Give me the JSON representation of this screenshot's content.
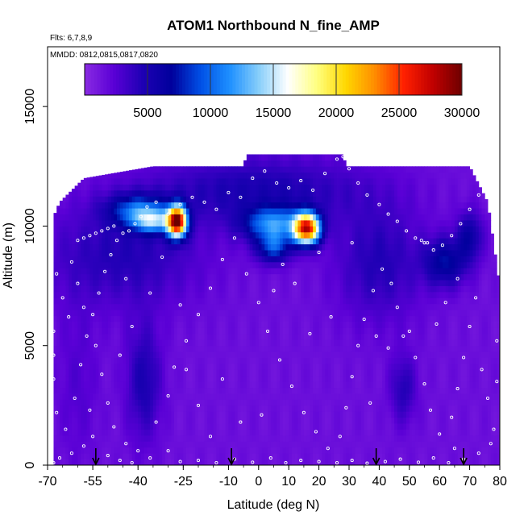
{
  "chart_data": {
    "type": "heatmap",
    "title": "ATOM1 Northbound N_fine_AMP",
    "subtitle_flights": "Flts: 6,7,8,9",
    "subtitle_dates": "MMDD: 0812,0815,0817,0820",
    "xlabel": "Latitude (deg N)",
    "ylabel": "Altitude (m)",
    "xlim": [
      -70,
      80
    ],
    "ylim": [
      0,
      17500
    ],
    "x_ticks": [
      -70,
      -55,
      -40,
      -25,
      -10,
      0,
      10,
      20,
      30,
      40,
      50,
      60,
      70,
      80
    ],
    "x_tick_labels": [
      "-70",
      "-55",
      "-40",
      "-25",
      "-10",
      "0",
      "10",
      "20",
      "30",
      "40",
      "50",
      "60",
      "70",
      "80"
    ],
    "y_ticks": [
      0,
      5000,
      10000,
      15000
    ],
    "y_tick_labels": [
      "0",
      "5000",
      "10000",
      "15000"
    ],
    "colorbar": {
      "range": [
        0,
        30000
      ],
      "ticks": [
        5000,
        10000,
        15000,
        20000,
        25000,
        30000
      ],
      "tick_labels": [
        "5000",
        "10000",
        "15000",
        "20000",
        "25000",
        "30000"
      ],
      "colors": [
        "#8a2be2",
        "#5a00d6",
        "#1e00b4",
        "#00009c",
        "#0050e6",
        "#1e90ff",
        "#87cefa",
        "#ffffff",
        "#ffff80",
        "#ffd700",
        "#ff8c00",
        "#ff2000",
        "#c00000",
        "#6e0000"
      ]
    },
    "field": {
      "background_value": 1500,
      "top_altitude_by_latitude": [
        {
          "lat": -68,
          "top": 10400
        },
        {
          "lat": -66,
          "top": 11000
        },
        {
          "lat": -62,
          "top": 11500
        },
        {
          "lat": -58,
          "top": 12000
        },
        {
          "lat": -35,
          "top": 12500
        },
        {
          "lat": -5,
          "top": 12500
        },
        {
          "lat": -4,
          "top": 13000
        },
        {
          "lat": 28,
          "top": 13000
        },
        {
          "lat": 29,
          "top": 12500
        },
        {
          "lat": 70,
          "top": 12500
        },
        {
          "lat": 72,
          "top": 12000
        },
        {
          "lat": 76,
          "top": 11000
        },
        {
          "lat": 80,
          "top": 7500
        }
      ],
      "features": [
        {
          "lat": -40,
          "alt": 10700,
          "sigma_lat": 7,
          "sigma_alt": 450,
          "value": 7000
        },
        {
          "lat": -27,
          "alt": 10200,
          "sigma_lat": 2.2,
          "sigma_alt": 450,
          "value": 26000
        },
        {
          "lat": -35,
          "alt": 10200,
          "sigma_lat": 5,
          "sigma_alt": 350,
          "value": 9000
        },
        {
          "lat": 5,
          "alt": 10100,
          "sigma_lat": 7,
          "sigma_alt": 500,
          "value": 9000
        },
        {
          "lat": 16,
          "alt": 9900,
          "sigma_lat": 3,
          "sigma_alt": 450,
          "value": 24000
        },
        {
          "lat": 5,
          "alt": 9100,
          "sigma_lat": 4,
          "sigma_alt": 450,
          "value": 7000
        },
        {
          "lat": 0,
          "alt": 11500,
          "sigma_lat": 25,
          "sigma_alt": 1000,
          "value": 3500
        },
        {
          "lat": -45,
          "alt": 8800,
          "sigma_lat": 18,
          "sigma_alt": 1500,
          "value": 3000
        },
        {
          "lat": 40,
          "alt": 8500,
          "sigma_lat": 10,
          "sigma_alt": 1700,
          "value": 3000
        },
        {
          "lat": 62,
          "alt": 8500,
          "sigma_lat": 5,
          "sigma_alt": 700,
          "value": 5500
        },
        {
          "lat": 70,
          "alt": 9600,
          "sigma_lat": 3,
          "sigma_alt": 700,
          "value": 4500
        },
        {
          "lat": -38,
          "alt": 3500,
          "sigma_lat": 4,
          "sigma_alt": 1700,
          "value": 3500
        },
        {
          "lat": 48,
          "alt": 3200,
          "sigma_lat": 3,
          "sigma_alt": 1000,
          "value": 3000
        },
        {
          "lat": -60,
          "alt": 3500,
          "sigma_lat": 5,
          "sigma_alt": 2500,
          "value": 1200
        }
      ]
    },
    "flight_track_points": [
      [
        -68,
        100
      ],
      [
        -66,
        300
      ],
      [
        -62,
        500
      ],
      [
        -58,
        800
      ],
      [
        -55,
        1200
      ],
      [
        -50,
        400
      ],
      [
        -46,
        200
      ],
      [
        -42,
        100
      ],
      [
        -36,
        300
      ],
      [
        -30,
        600
      ],
      [
        -26,
        150
      ],
      [
        -20,
        200
      ],
      [
        -14,
        100
      ],
      [
        -8,
        250
      ],
      [
        -2,
        120
      ],
      [
        4,
        300
      ],
      [
        9,
        100
      ],
      [
        14,
        200
      ],
      [
        20,
        150
      ],
      [
        26,
        100
      ],
      [
        31,
        200
      ],
      [
        36,
        80
      ],
      [
        42,
        150
      ],
      [
        47,
        250
      ],
      [
        53,
        120
      ],
      [
        58,
        300
      ],
      [
        63,
        100
      ],
      [
        68,
        250
      ],
      [
        73,
        500
      ],
      [
        77,
        900
      ],
      [
        -68,
        5600
      ],
      [
        -68,
        4600
      ],
      [
        -68,
        3600
      ],
      [
        -67,
        2200
      ],
      [
        -64,
        1500
      ],
      [
        -61,
        2800
      ],
      [
        -59,
        4200
      ],
      [
        -57,
        5400
      ],
      [
        -55,
        6300
      ],
      [
        -53,
        7200
      ],
      [
        -51,
        8100
      ],
      [
        -49,
        8800
      ],
      [
        -47,
        9400
      ],
      [
        -45,
        9700
      ],
      [
        -43,
        9800
      ],
      [
        -41,
        10100
      ],
      [
        -39,
        10400
      ],
      [
        -37,
        10800
      ],
      [
        -34,
        11000
      ],
      [
        -30,
        10500
      ],
      [
        -26,
        10900
      ],
      [
        -22,
        11200
      ],
      [
        -18,
        11000
      ],
      [
        -14,
        10700
      ],
      [
        -10,
        11400
      ],
      [
        -6,
        11200
      ],
      [
        -2,
        12000
      ],
      [
        2,
        12300
      ],
      [
        6,
        11800
      ],
      [
        10,
        11600
      ],
      [
        14,
        11900
      ],
      [
        18,
        11500
      ],
      [
        22,
        12200
      ],
      [
        26,
        12800
      ],
      [
        28,
        12900
      ],
      [
        30,
        12400
      ],
      [
        33,
        11800
      ],
      [
        36,
        11300
      ],
      [
        40,
        10900
      ],
      [
        43,
        10500
      ],
      [
        46,
        10200
      ],
      [
        49,
        9800
      ],
      [
        52,
        9500
      ],
      [
        55,
        9300
      ],
      [
        58,
        9000
      ],
      [
        61,
        9200
      ],
      [
        64,
        9600
      ],
      [
        67,
        10100
      ],
      [
        70,
        10700
      ],
      [
        73,
        11300
      ],
      [
        75,
        12000
      ],
      [
        -60,
        9400
      ],
      [
        -58,
        9500
      ],
      [
        -56,
        9600
      ],
      [
        -54,
        9700
      ],
      [
        -52,
        9800
      ],
      [
        -50,
        9900
      ],
      [
        -48,
        10000
      ],
      [
        54,
        9400
      ],
      [
        56,
        9300
      ],
      [
        -65,
        7000
      ],
      [
        -62,
        8500
      ],
      [
        -60,
        7600
      ],
      [
        -58,
        6600
      ],
      [
        -54,
        5000
      ],
      [
        -52,
        3800
      ],
      [
        -50,
        2600
      ],
      [
        -48,
        1600
      ],
      [
        -44,
        900
      ],
      [
        -40,
        600
      ],
      [
        -34,
        1800
      ],
      [
        -30,
        2900
      ],
      [
        -28,
        4100
      ],
      [
        -24,
        5200
      ],
      [
        -20,
        6300
      ],
      [
        -16,
        7400
      ],
      [
        -12,
        8600
      ],
      [
        -8,
        9500
      ],
      [
        -4,
        8000
      ],
      [
        0,
        6800
      ],
      [
        3,
        5600
      ],
      [
        7,
        4400
      ],
      [
        11,
        3300
      ],
      [
        15,
        2200
      ],
      [
        19,
        1400
      ],
      [
        23,
        700
      ],
      [
        27,
        1200
      ],
      [
        29,
        2400
      ],
      [
        31,
        3700
      ],
      [
        33,
        5000
      ],
      [
        35,
        6100
      ],
      [
        38,
        7300
      ],
      [
        41,
        8200
      ],
      [
        44,
        7600
      ],
      [
        46,
        6600
      ],
      [
        50,
        5600
      ],
      [
        52,
        4500
      ],
      [
        55,
        3400
      ],
      [
        57,
        2300
      ],
      [
        60,
        1300
      ],
      [
        64,
        2000
      ],
      [
        66,
        3200
      ],
      [
        68,
        4500
      ],
      [
        70,
        5800
      ],
      [
        72,
        7000
      ],
      [
        74,
        4000
      ],
      [
        76,
        2800
      ],
      [
        78,
        1500
      ],
      [
        79,
        5200
      ],
      [
        79,
        3500
      ],
      [
        -67,
        8000
      ],
      [
        -63,
        6200
      ],
      [
        -46,
        4600
      ],
      [
        -42,
        5800
      ],
      [
        -36,
        7200
      ],
      [
        -32,
        8700
      ],
      [
        -20,
        2500
      ],
      [
        -12,
        3600
      ],
      [
        -6,
        1800
      ],
      [
        8,
        8400
      ],
      [
        12,
        7600
      ],
      [
        20,
        8900
      ],
      [
        24,
        6200
      ],
      [
        37,
        2600
      ],
      [
        43,
        4900
      ],
      [
        48,
        5400
      ],
      [
        62,
        6800
      ],
      [
        66,
        7800
      ],
      [
        59,
        5900
      ],
      [
        -26,
        6700
      ],
      [
        -24,
        4000
      ],
      [
        1,
        2100
      ],
      [
        5,
        7300
      ],
      [
        17,
        5500
      ],
      [
        -16,
        1200
      ],
      [
        -44,
        7800
      ],
      [
        -56,
        2300
      ],
      [
        31,
        9300
      ],
      [
        39,
        5400
      ],
      [
        65,
        700
      ]
    ],
    "flight_markers_lat": [
      -54,
      -9,
      39,
      68
    ]
  }
}
